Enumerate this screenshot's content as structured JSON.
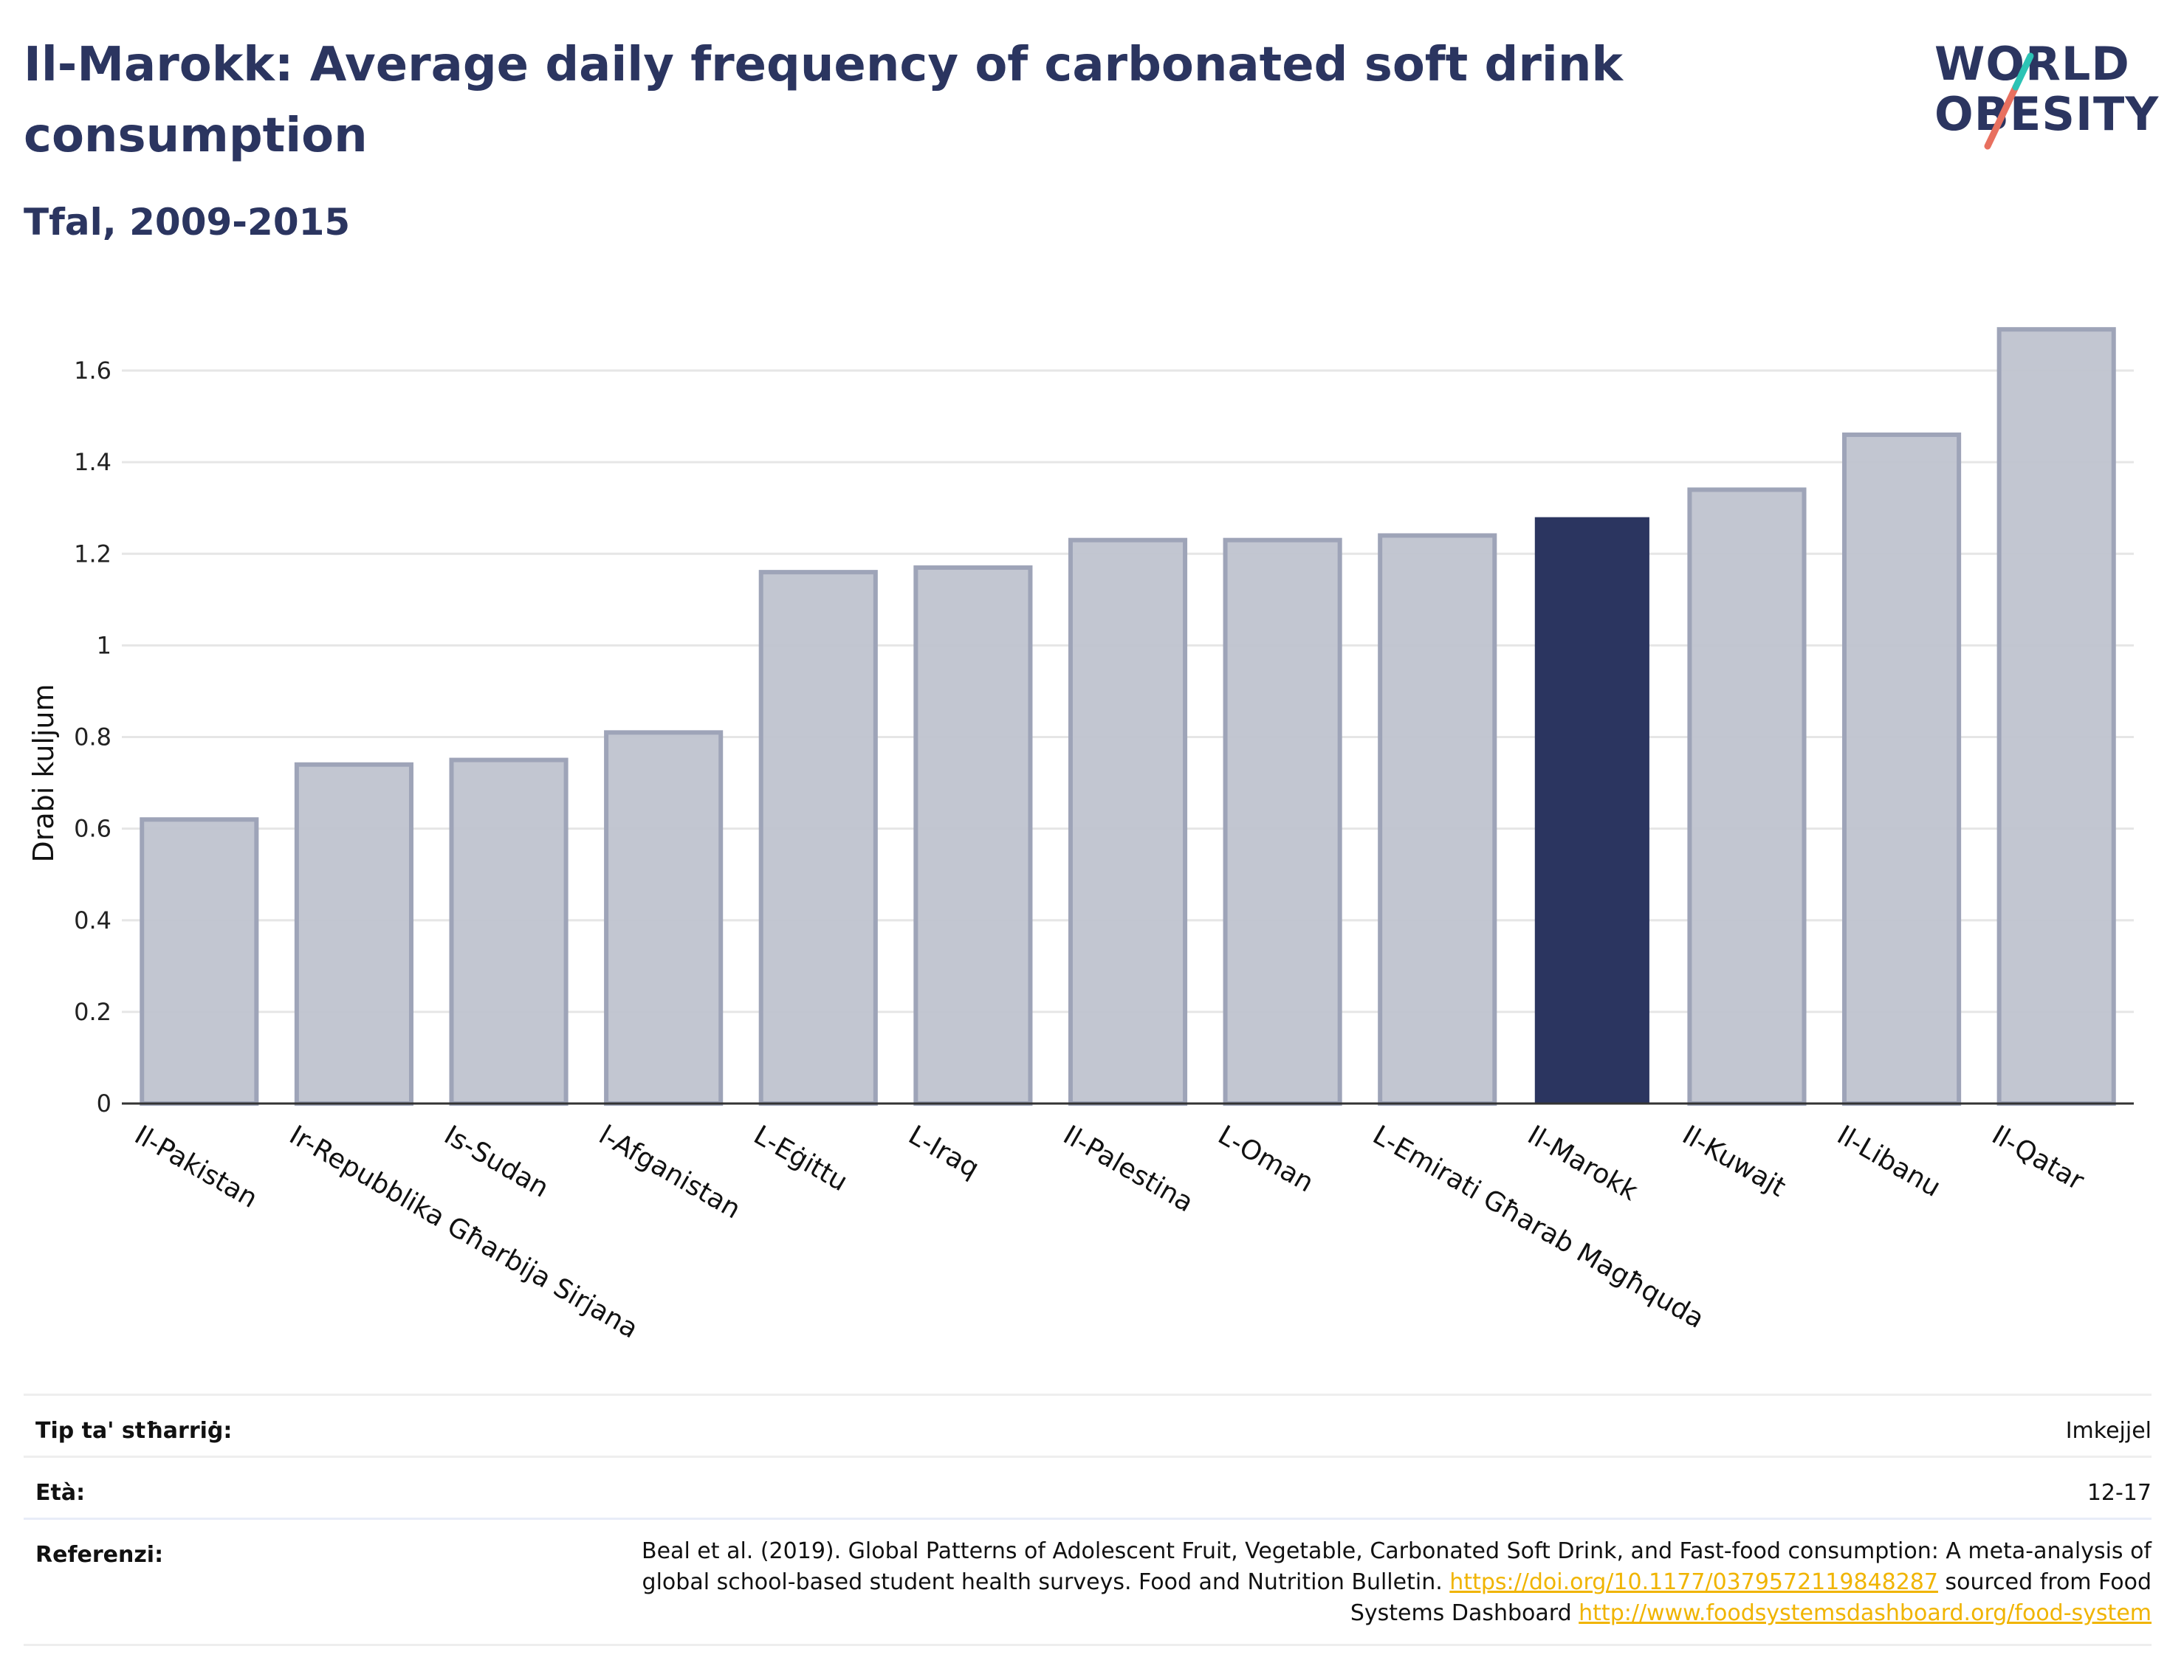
{
  "header": {
    "title": "Il-Marokk: Average daily frequency of carbonated soft drink consumption",
    "subtitle": "Tfal, 2009-2015"
  },
  "logo": {
    "line1": "WORLD",
    "line2": "OBESITY"
  },
  "colors": {
    "highlight": "#2b3560",
    "bar": "#bfc3cf",
    "bar_border": "#9ea4b8",
    "title": "#2b3560",
    "link": "#f0b400"
  },
  "chart_data": {
    "type": "bar",
    "ylabel": "Drabi kuljum",
    "xlabel": "",
    "ylim": [
      0,
      1.7
    ],
    "yticks": [
      0,
      0.2,
      0.4,
      0.6,
      0.8,
      1,
      1.2,
      1.4,
      1.6
    ],
    "ytick_labels": [
      "0",
      "0.2",
      "0.4",
      "0.6",
      "0.8",
      "1",
      "1.2",
      "1.4",
      "1.6"
    ],
    "grid": true,
    "highlight": "Il-Marokk",
    "categories": [
      "Il-Pakistan",
      "Ir-Repubblika Għarbija Sirjana",
      "Is-Sudan",
      "l-Afganistan",
      "L-Eġittu",
      "L-Iraq",
      "Il-Palestina",
      "L-Oman",
      "L-Emirati Għarab Magħquda",
      "Il-Marokk",
      "Il-Kuwajt",
      "Il-Libanu",
      "Il-Qatar"
    ],
    "values": [
      0.62,
      0.74,
      0.75,
      0.81,
      1.16,
      1.17,
      1.23,
      1.23,
      1.24,
      1.28,
      1.34,
      1.46,
      1.69
    ]
  },
  "meta": {
    "rows": [
      {
        "key": "Tip ta' stħarriġ:",
        "value": "Imkejjel"
      },
      {
        "key": "Età:",
        "value": "12-17"
      }
    ],
    "reference": {
      "key": "Referenzi:",
      "text1": "Beal et al. (2019). Global Patterns of Adolescent Fruit, Vegetable, Carbonated Soft Drink, and Fast-food consumption: A meta-analysis of global school-based student health surveys. Food and Nutrition Bulletin. ",
      "link1": "https://doi.org/10.1177/0379572119848287",
      "text2": " sourced from Food Systems Dashboard ",
      "link2": "http://www.foodsystemsdashboard.org/food-system"
    }
  }
}
